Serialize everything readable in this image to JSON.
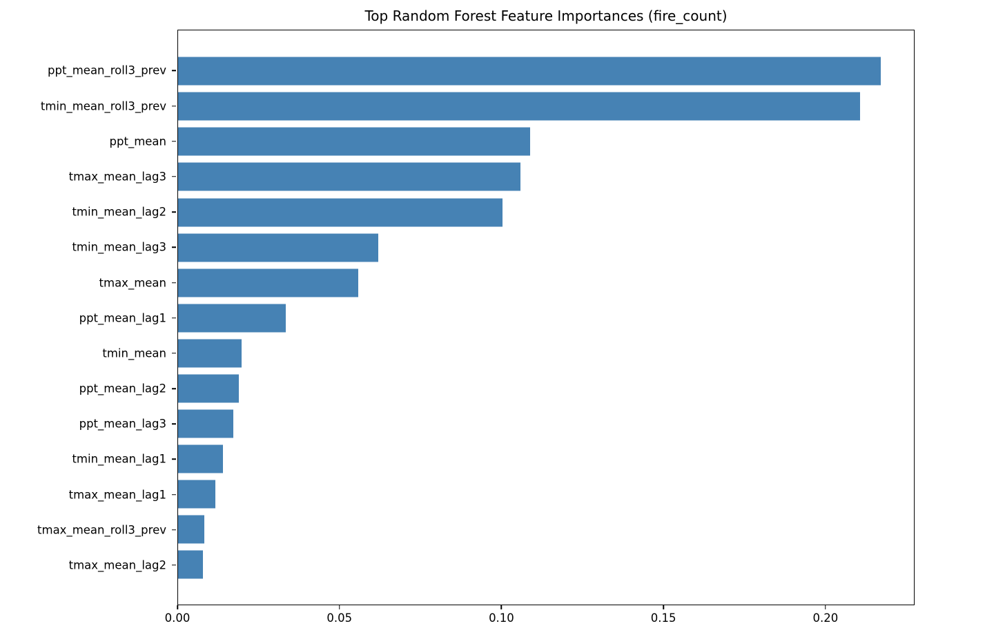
{
  "chart_data": {
    "type": "bar",
    "orientation": "horizontal",
    "title": "Top Random Forest Feature Importances (fire_count)",
    "xlabel": "",
    "ylabel": "",
    "categories": [
      "ppt_mean_roll3_prev",
      "tmin_mean_roll3_prev",
      "ppt_mean",
      "tmax_mean_lag3",
      "tmin_mean_lag2",
      "tmin_mean_lag3",
      "tmax_mean",
      "ppt_mean_lag1",
      "tmin_mean",
      "ppt_mean_lag2",
      "ppt_mean_lag3",
      "tmin_mean_lag1",
      "tmax_mean_lag1",
      "tmax_mean_roll3_prev",
      "tmax_mean_lag2"
    ],
    "values": [
      0.2172,
      0.2108,
      0.1088,
      0.1058,
      0.1003,
      0.0618,
      0.0557,
      0.0333,
      0.0196,
      0.0188,
      0.0171,
      0.0139,
      0.0115,
      0.0081,
      0.0077
    ],
    "xlim": [
      0,
      0.2275
    ],
    "xticks": [
      0.0,
      0.05,
      0.1,
      0.15,
      0.2
    ],
    "xtick_labels": [
      "0.00",
      "0.05",
      "0.10",
      "0.15",
      "0.20"
    ],
    "bar_color": "#4682b4",
    "grid": false,
    "legend": null
  }
}
